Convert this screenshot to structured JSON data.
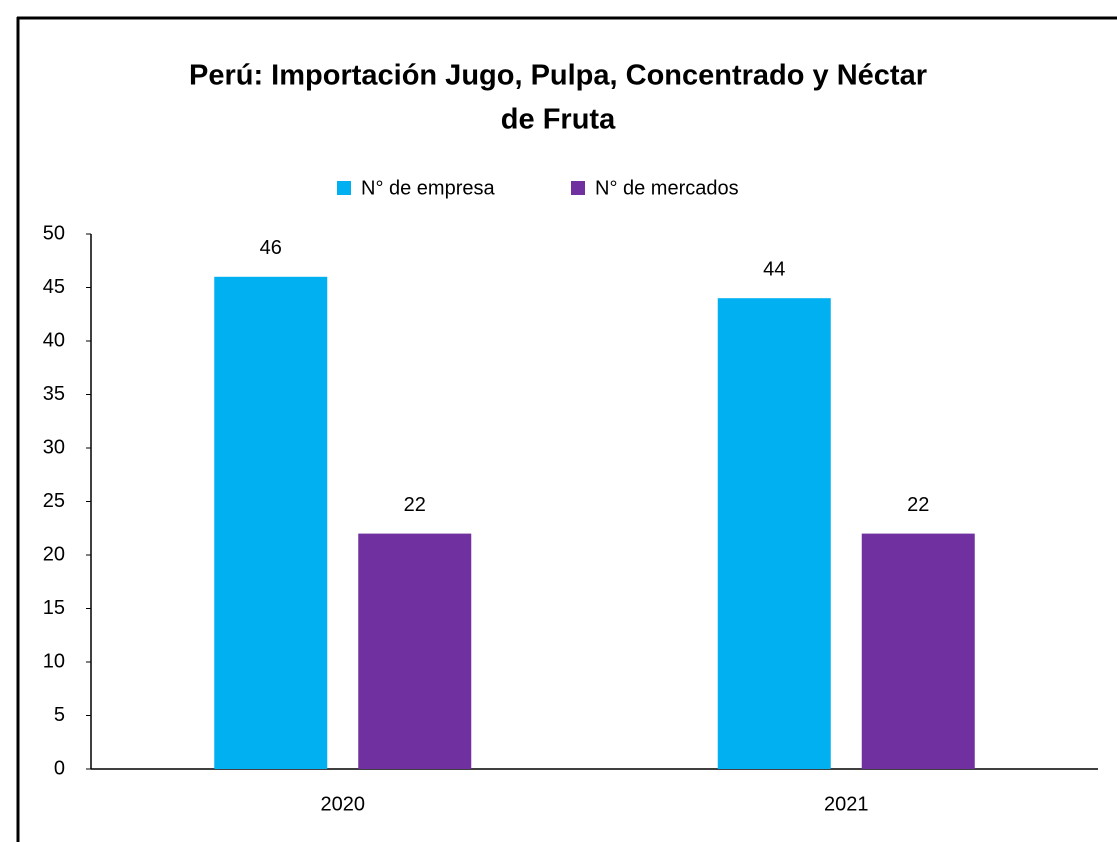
{
  "chart_data": {
    "type": "bar",
    "title": [
      "Perú: Importación Jugo, Pulpa, Concentrado y Néctar",
      "de Fruta"
    ],
    "categories": [
      "2020",
      "2021"
    ],
    "series": [
      {
        "name": "N° de empresa",
        "color": "#00b0f0",
        "values": [
          46,
          44
        ]
      },
      {
        "name": "N° de mercados",
        "color": "#7030a0",
        "values": [
          22,
          22
        ]
      }
    ],
    "ylim": [
      0,
      50
    ],
    "yticks": [
      0,
      5,
      10,
      15,
      20,
      25,
      30,
      35,
      40,
      45,
      50
    ],
    "grid": false,
    "legend": "top"
  }
}
